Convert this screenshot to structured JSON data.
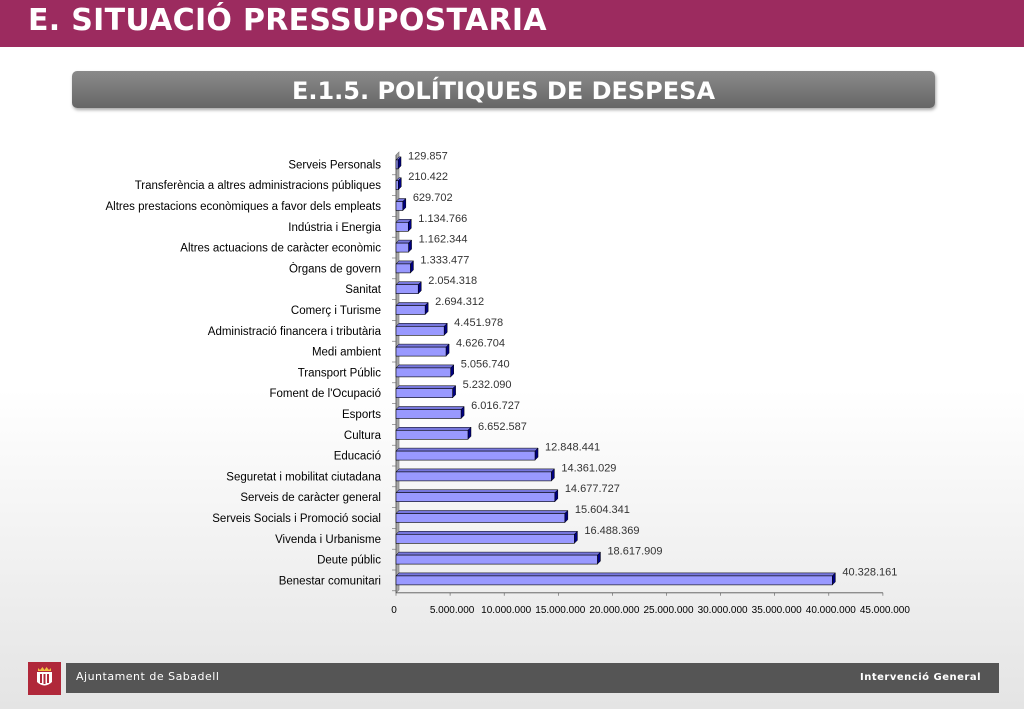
{
  "header": {
    "title": "E. SITUACIÓ PRESSUPOSTARIA",
    "subtitle": "E.1.5. POLÍTIQUES DE DESPESA"
  },
  "footer": {
    "organization": "Ajuntament de Sabadell",
    "department": "Intervenció General"
  },
  "colors": {
    "banner": "#9c2b5f",
    "bar_face": "#9999ff",
    "bar_side": "#000080"
  },
  "chart_data": {
    "type": "bar",
    "orientation": "horizontal",
    "categories": [
      "Serveis Personals",
      "Transferència a altres administracions públiques",
      "Altres prestacions econòmiques a favor dels empleats",
      "Indústria i Energia",
      "Altres actuacions de caràcter econòmic",
      "Òrgans de govern",
      "Sanitat",
      "Comerç i Turisme",
      "Administració financera i tributària",
      "Medi ambient",
      "Transport Públic",
      "Foment de l'Ocupació",
      "Esports",
      "Cultura",
      "Educació",
      "Seguretat i mobilitat ciutadana",
      "Serveis de caràcter general",
      "Serveis Socials i Promoció social",
      "Vivenda i Urbanisme",
      "Deute públic",
      "Benestar comunitari"
    ],
    "values": [
      129857,
      210422,
      629702,
      1134766,
      1162344,
      1333477,
      2054318,
      2694312,
      4451978,
      4626704,
      5056740,
      5232090,
      6016727,
      6652587,
      12848441,
      14361029,
      14677727,
      15604341,
      16488369,
      18617909,
      40328161
    ],
    "value_labels": [
      "129.857",
      "210.422",
      "629.702",
      "1.134.766",
      "1.162.344",
      "1.333.477",
      "2.054.318",
      "2.694.312",
      "4.451.978",
      "4.626.704",
      "5.056.740",
      "5.232.090",
      "6.016.727",
      "6.652.587",
      "12.848.441",
      "14.361.029",
      "14.677.727",
      "15.604.341",
      "16.488.369",
      "18.617.909",
      "40.328.161"
    ],
    "xticks": [
      0,
      5000000,
      10000000,
      15000000,
      20000000,
      25000000,
      30000000,
      35000000,
      40000000,
      45000000
    ],
    "xtick_labels": [
      "0",
      "5.000.000",
      "10.000.000",
      "15.000.000",
      "20.000.000",
      "25.000.000",
      "30.000.000",
      "35.000.000",
      "40.000.000",
      "45.000.000"
    ],
    "xlim": [
      0,
      45000000
    ],
    "grid": false,
    "legend": false
  }
}
